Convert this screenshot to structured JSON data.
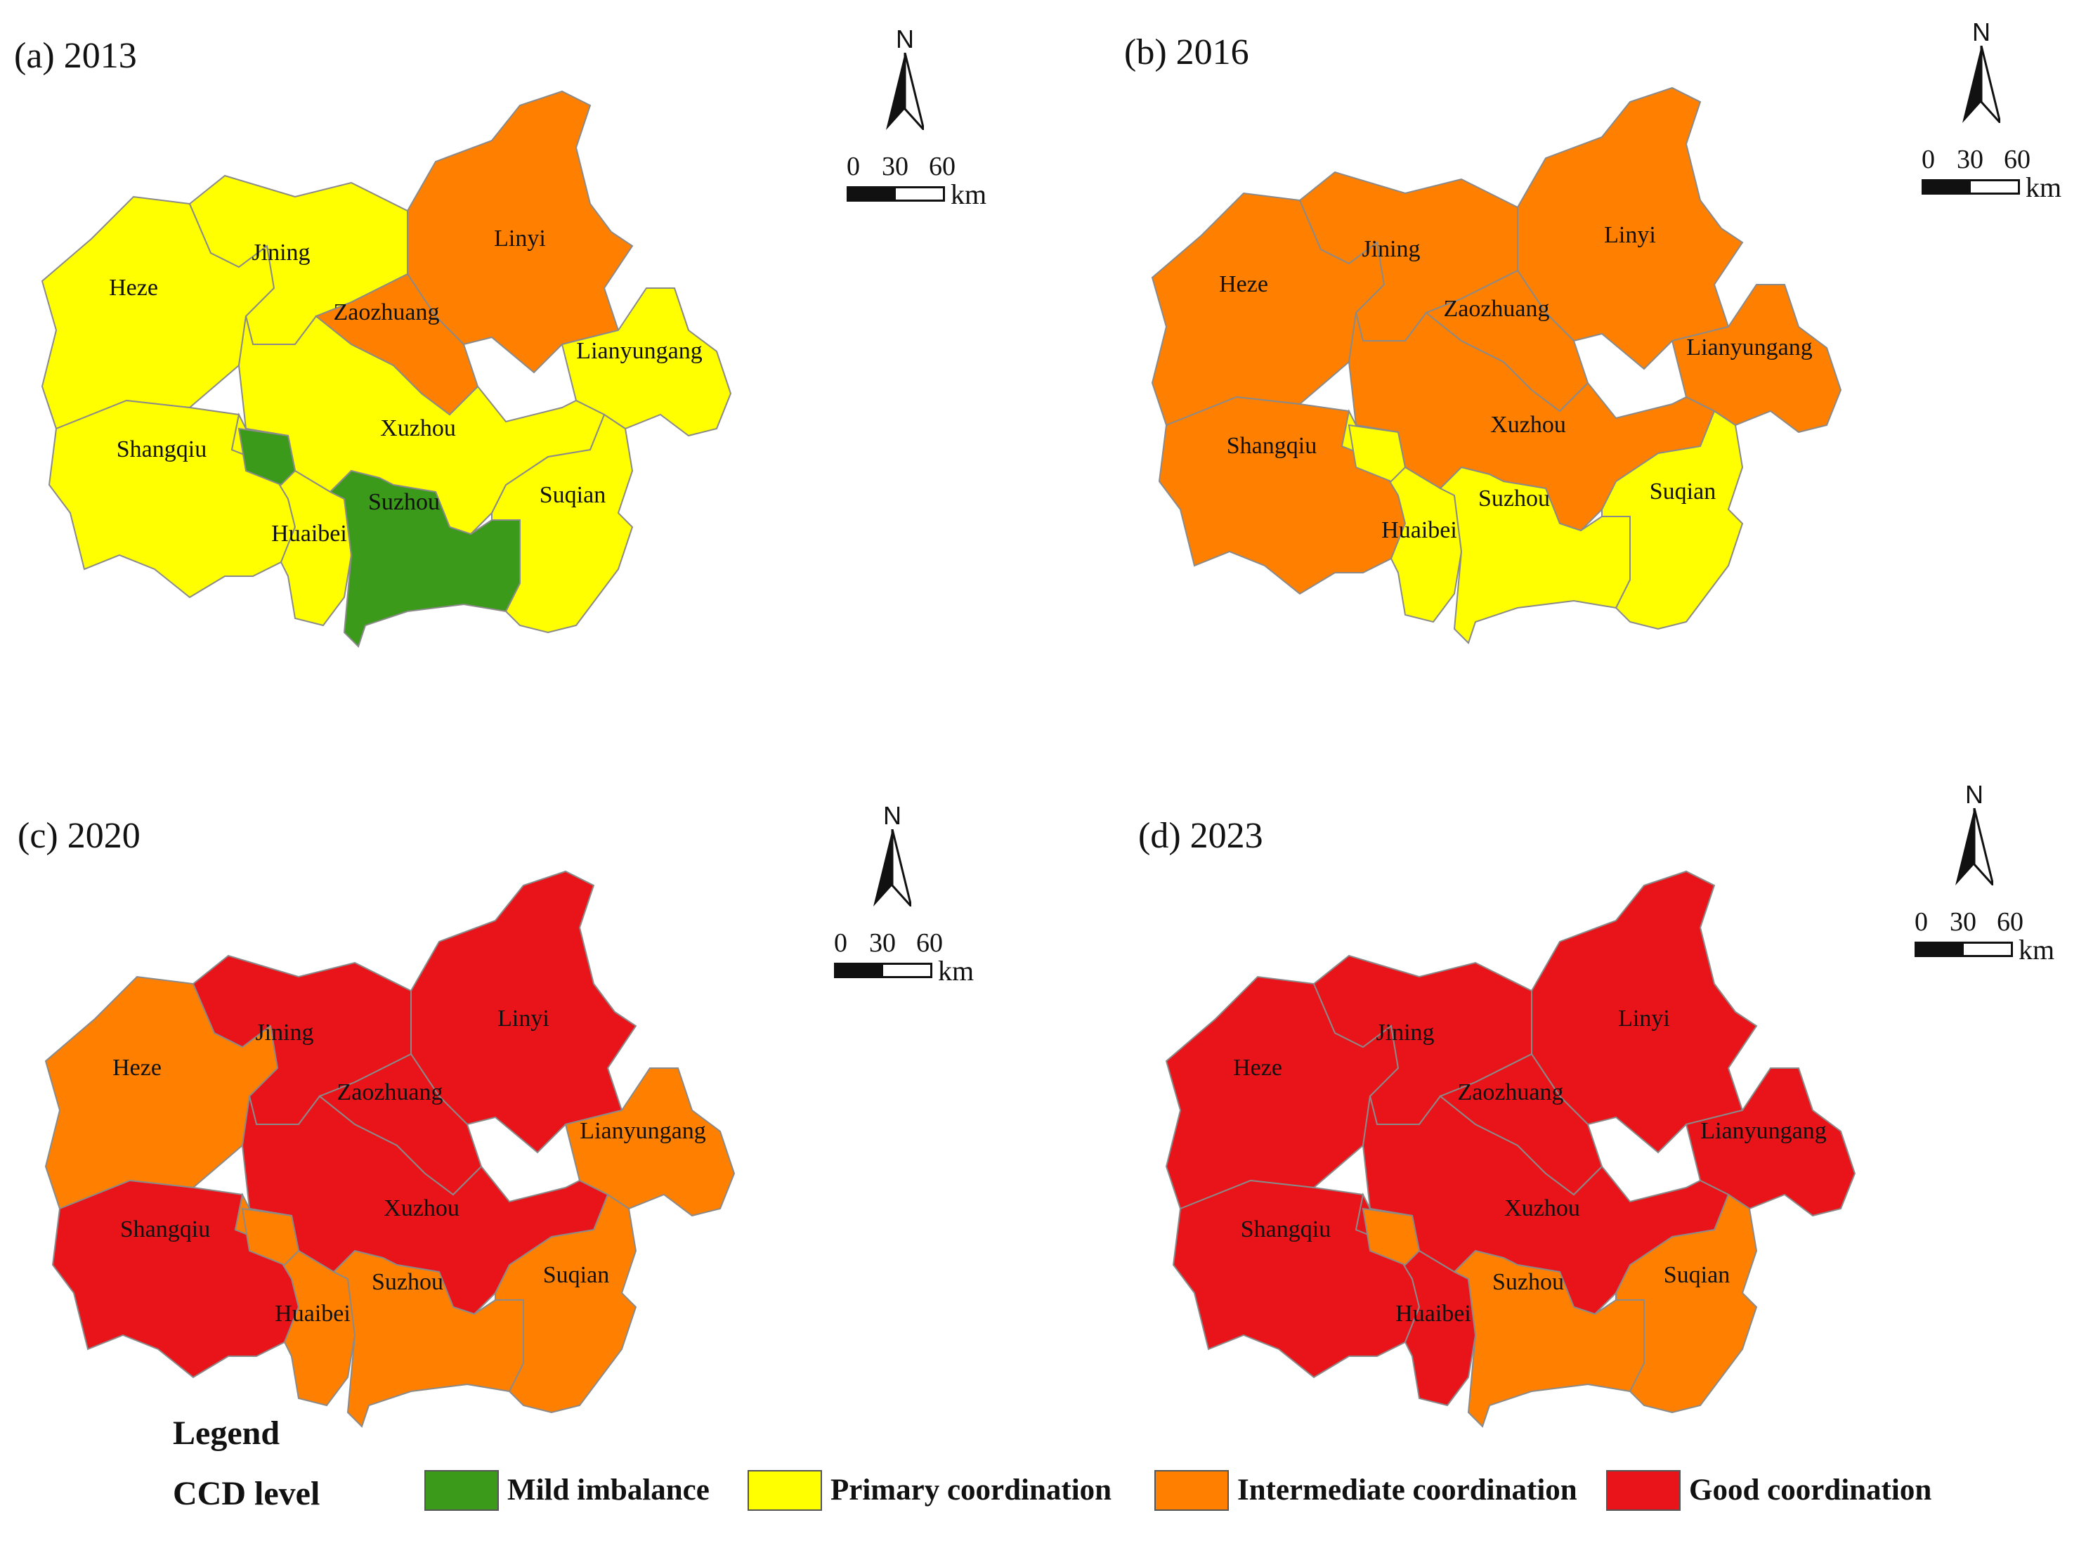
{
  "colors": {
    "mild": "#3c9a1a",
    "primary": "#ffff00",
    "intermediate": "#ff8000",
    "good": "#e8141a",
    "border": "#8a8a8a"
  },
  "panels": [
    {
      "title": "(a) 2013",
      "levels": {
        "Heze": "primary",
        "Jining": "primary",
        "Linyi": "intermediate",
        "Zaozhuang": "intermediate",
        "Lianyungang": "primary",
        "Shangqiu": "primary",
        "Xuzhou": "primary",
        "Suzhou": "mild",
        "Huaibei": "primary",
        "Suqian": "primary",
        "Chan": "mild"
      }
    },
    {
      "title": "(b) 2016",
      "levels": {
        "Heze": "intermediate",
        "Jining": "intermediate",
        "Linyi": "intermediate",
        "Zaozhuang": "intermediate",
        "Lianyungang": "intermediate",
        "Shangqiu": "intermediate",
        "Xuzhou": "intermediate",
        "Suzhou": "primary",
        "Huaibei": "primary",
        "Suqian": "primary",
        "Chan": "primary"
      }
    },
    {
      "title": "(c) 2020",
      "levels": {
        "Heze": "intermediate",
        "Jining": "good",
        "Linyi": "good",
        "Zaozhuang": "good",
        "Lianyungang": "intermediate",
        "Shangqiu": "good",
        "Xuzhou": "good",
        "Suzhou": "intermediate",
        "Huaibei": "intermediate",
        "Suqian": "intermediate",
        "Chan": "intermediate"
      }
    },
    {
      "title": "(d) 2023",
      "levels": {
        "Heze": "good",
        "Jining": "good",
        "Linyi": "good",
        "Zaozhuang": "good",
        "Lianyungang": "good",
        "Shangqiu": "good",
        "Xuzhou": "good",
        "Suzhou": "intermediate",
        "Huaibei": "good",
        "Suqian": "intermediate",
        "Chan": "intermediate"
      }
    }
  ],
  "city_names": {
    "Heze": "Heze",
    "Jining": "Jining",
    "Linyi": "Linyi",
    "Zaozhuang": "Zaozhuang",
    "Lianyungang": "Lianyungang",
    "Shangqiu": "Shangqiu",
    "Xuzhou": "Xuzhou",
    "Suzhou": "Suzhou",
    "Huaibei": "Huaibei",
    "Suqian": "Suqian"
  },
  "north_arrow": {
    "label": "N",
    "icon": "north-arrow-icon"
  },
  "scale_bar": {
    "ticks": [
      "0",
      "30",
      "60"
    ],
    "unit": "km"
  },
  "legend": {
    "title": "Legend",
    "subtitle": "CCD  level",
    "items": [
      {
        "key": "mild",
        "label": "Mild imbalance"
      },
      {
        "key": "primary",
        "label": "Primary coordination"
      },
      {
        "key": "intermediate",
        "label": "Intermediate coordination"
      },
      {
        "key": "good",
        "label": "Good coordination"
      }
    ]
  }
}
